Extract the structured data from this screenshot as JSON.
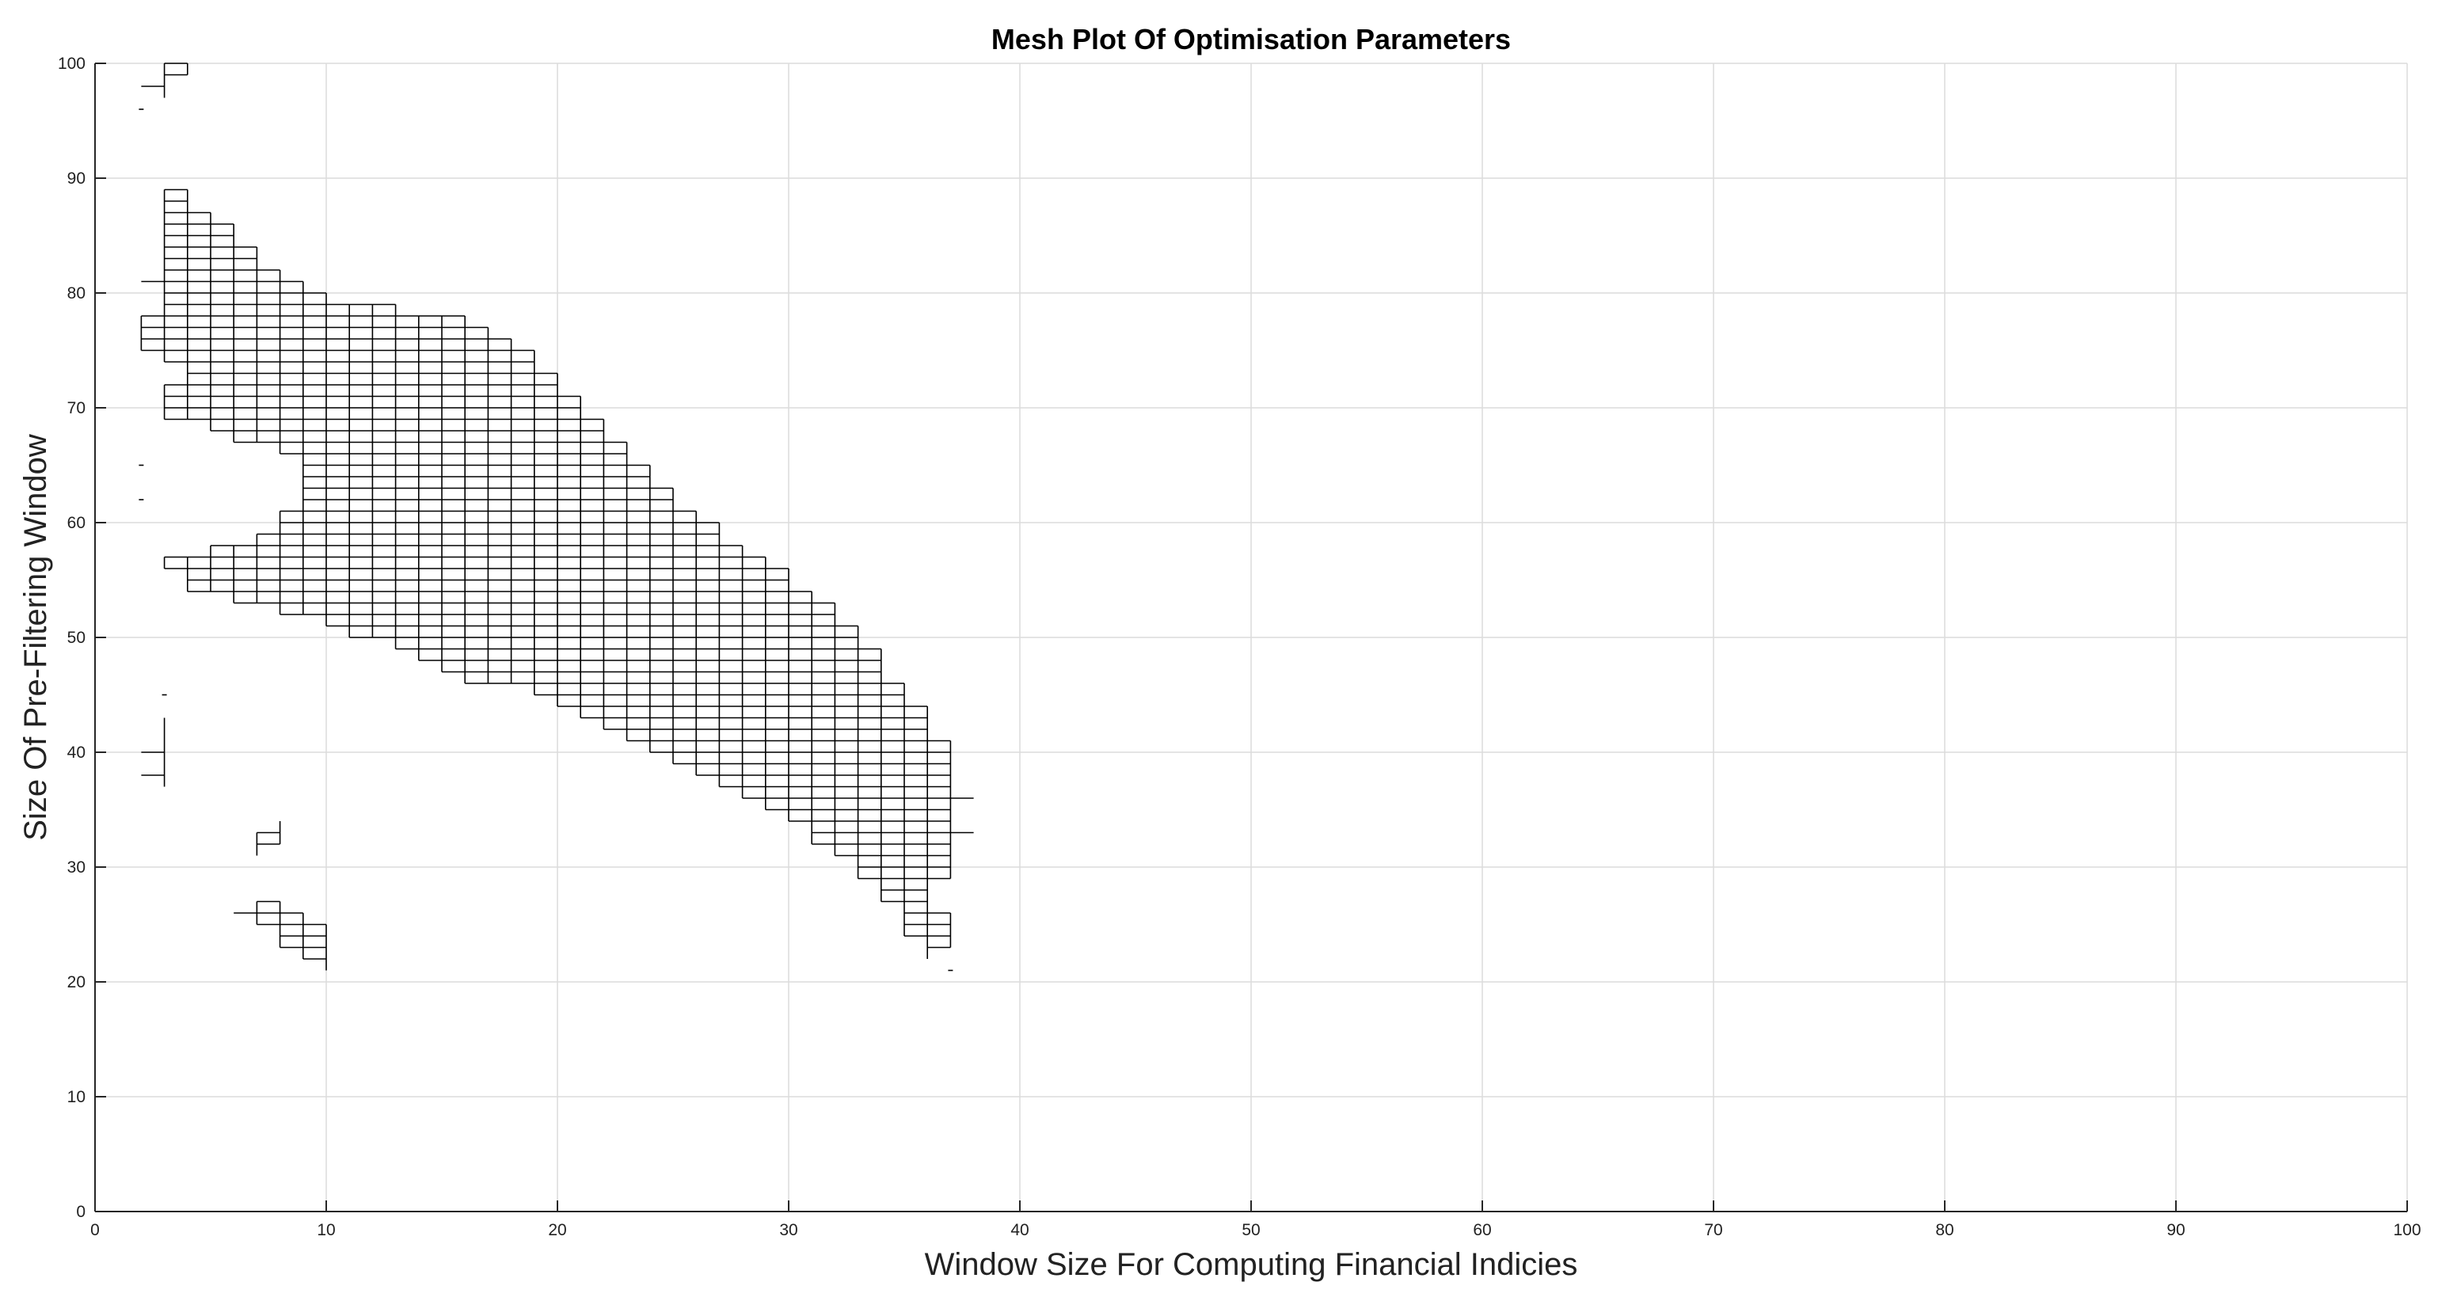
{
  "chart_data": {
    "type": "mesh",
    "title": "Mesh Plot Of Optimisation Parameters",
    "xlabel": "Window Size For Computing Financial Indicies",
    "ylabel": "Size Of Pre-Filtering Window",
    "xlim": [
      0,
      100
    ],
    "ylim": [
      0,
      100
    ],
    "x_ticks": [
      0,
      10,
      20,
      30,
      40,
      50,
      60,
      70,
      80,
      90,
      100
    ],
    "y_ticks": [
      0,
      10,
      20,
      30,
      40,
      50,
      60,
      70,
      80,
      90,
      100
    ],
    "x_tick_labels": [
      "0",
      "10",
      "20",
      "30",
      "40",
      "50",
      "60",
      "70",
      "80",
      "90",
      "100"
    ],
    "y_tick_labels": [
      "0",
      "10",
      "20",
      "30",
      "40",
      "50",
      "60",
      "70",
      "80",
      "90",
      "100"
    ],
    "grid": true,
    "mesh_color": "#000000",
    "defined_region_rows": [
      {
        "y": 21,
        "segments": [
          [
            10,
            10
          ],
          [
            37,
            37
          ]
        ]
      },
      {
        "y": 22,
        "segments": [
          [
            9,
            10
          ],
          [
            36,
            36
          ]
        ]
      },
      {
        "y": 23,
        "segments": [
          [
            8,
            10
          ],
          [
            36,
            37
          ]
        ]
      },
      {
        "y": 24,
        "segments": [
          [
            8,
            10
          ],
          [
            35,
            37
          ]
        ]
      },
      {
        "y": 25,
        "segments": [
          [
            7,
            10
          ],
          [
            35,
            37
          ]
        ]
      },
      {
        "y": 26,
        "segments": [
          [
            6,
            9
          ],
          [
            35,
            37
          ]
        ]
      },
      {
        "y": 27,
        "segments": [
          [
            7,
            8
          ],
          [
            34,
            36
          ]
        ]
      },
      {
        "y": 28,
        "segments": [
          [
            34,
            36
          ]
        ]
      },
      {
        "y": 29,
        "segments": [
          [
            33,
            37
          ]
        ]
      },
      {
        "y": 30,
        "segments": [
          [
            33,
            37
          ]
        ]
      },
      {
        "y": 31,
        "segments": [
          [
            7,
            7
          ],
          [
            32,
            37
          ]
        ]
      },
      {
        "y": 32,
        "segments": [
          [
            7,
            8
          ],
          [
            31,
            37
          ]
        ]
      },
      {
        "y": 33,
        "segments": [
          [
            7,
            8
          ],
          [
            31,
            38
          ]
        ]
      },
      {
        "y": 34,
        "segments": [
          [
            8,
            8
          ],
          [
            30,
            37
          ]
        ]
      },
      {
        "y": 35,
        "segments": [
          [
            29,
            37
          ]
        ]
      },
      {
        "y": 36,
        "segments": [
          [
            28,
            38
          ]
        ]
      },
      {
        "y": 37,
        "segments": [
          [
            3,
            3
          ],
          [
            27,
            37
          ]
        ]
      },
      {
        "y": 38,
        "segments": [
          [
            2,
            3
          ],
          [
            26,
            37
          ]
        ]
      },
      {
        "y": 39,
        "segments": [
          [
            3,
            3
          ],
          [
            25,
            37
          ]
        ]
      },
      {
        "y": 40,
        "segments": [
          [
            2,
            3
          ],
          [
            24,
            37
          ]
        ]
      },
      {
        "y": 41,
        "segments": [
          [
            3,
            3
          ],
          [
            23,
            37
          ]
        ]
      },
      {
        "y": 42,
        "segments": [
          [
            3,
            3
          ],
          [
            22,
            36
          ]
        ]
      },
      {
        "y": 43,
        "segments": [
          [
            3,
            3
          ],
          [
            21,
            36
          ]
        ]
      },
      {
        "y": 44,
        "segments": [
          [
            20,
            36
          ]
        ]
      },
      {
        "y": 45,
        "segments": [
          [
            3,
            3
          ],
          [
            19,
            35
          ]
        ]
      },
      {
        "y": 46,
        "segments": [
          [
            16,
            35
          ]
        ]
      },
      {
        "y": 47,
        "segments": [
          [
            15,
            34
          ]
        ]
      },
      {
        "y": 48,
        "segments": [
          [
            14,
            34
          ]
        ]
      },
      {
        "y": 49,
        "segments": [
          [
            13,
            34
          ]
        ]
      },
      {
        "y": 50,
        "segments": [
          [
            11,
            33
          ]
        ]
      },
      {
        "y": 51,
        "segments": [
          [
            10,
            33
          ]
        ]
      },
      {
        "y": 52,
        "segments": [
          [
            8,
            32
          ]
        ]
      },
      {
        "y": 53,
        "segments": [
          [
            6,
            32
          ]
        ]
      },
      {
        "y": 54,
        "segments": [
          [
            4,
            31
          ]
        ]
      },
      {
        "y": 55,
        "segments": [
          [
            4,
            30
          ]
        ]
      },
      {
        "y": 56,
        "segments": [
          [
            3,
            30
          ]
        ]
      },
      {
        "y": 57,
        "segments": [
          [
            3,
            29
          ]
        ]
      },
      {
        "y": 58,
        "segments": [
          [
            5,
            28
          ]
        ]
      },
      {
        "y": 59,
        "segments": [
          [
            7,
            27
          ]
        ]
      },
      {
        "y": 60,
        "segments": [
          [
            8,
            27
          ]
        ]
      },
      {
        "y": 61,
        "segments": [
          [
            8,
            26
          ]
        ]
      },
      {
        "y": 62,
        "segments": [
          [
            2,
            2
          ],
          [
            9,
            25
          ]
        ]
      },
      {
        "y": 63,
        "segments": [
          [
            9,
            25
          ]
        ]
      },
      {
        "y": 64,
        "segments": [
          [
            9,
            24
          ]
        ]
      },
      {
        "y": 65,
        "segments": [
          [
            2,
            2
          ],
          [
            9,
            24
          ]
        ]
      },
      {
        "y": 66,
        "segments": [
          [
            8,
            23
          ]
        ]
      },
      {
        "y": 67,
        "segments": [
          [
            6,
            23
          ]
        ]
      },
      {
        "y": 68,
        "segments": [
          [
            5,
            22
          ]
        ]
      },
      {
        "y": 69,
        "segments": [
          [
            3,
            22
          ]
        ]
      },
      {
        "y": 70,
        "segments": [
          [
            3,
            21
          ]
        ]
      },
      {
        "y": 71,
        "segments": [
          [
            3,
            21
          ]
        ]
      },
      {
        "y": 72,
        "segments": [
          [
            3,
            20
          ]
        ]
      },
      {
        "y": 73,
        "segments": [
          [
            4,
            20
          ]
        ]
      },
      {
        "y": 74,
        "segments": [
          [
            3,
            19
          ]
        ]
      },
      {
        "y": 75,
        "segments": [
          [
            2,
            19
          ]
        ]
      },
      {
        "y": 76,
        "segments": [
          [
            2,
            18
          ]
        ]
      },
      {
        "y": 77,
        "segments": [
          [
            2,
            17
          ]
        ]
      },
      {
        "y": 78,
        "segments": [
          [
            2,
            16
          ]
        ]
      },
      {
        "y": 79,
        "segments": [
          [
            3,
            13
          ]
        ]
      },
      {
        "y": 80,
        "segments": [
          [
            3,
            10
          ]
        ]
      },
      {
        "y": 81,
        "segments": [
          [
            2,
            9
          ]
        ]
      },
      {
        "y": 82,
        "segments": [
          [
            3,
            8
          ]
        ]
      },
      {
        "y": 83,
        "segments": [
          [
            3,
            7
          ]
        ]
      },
      {
        "y": 84,
        "segments": [
          [
            3,
            7
          ]
        ]
      },
      {
        "y": 85,
        "segments": [
          [
            3,
            6
          ]
        ]
      },
      {
        "y": 86,
        "segments": [
          [
            3,
            6
          ]
        ]
      },
      {
        "y": 87,
        "segments": [
          [
            3,
            5
          ]
        ]
      },
      {
        "y": 88,
        "segments": [
          [
            3,
            4
          ]
        ]
      },
      {
        "y": 89,
        "segments": [
          [
            3,
            4
          ]
        ]
      },
      {
        "y": 96,
        "segments": [
          [
            2,
            2
          ]
        ]
      },
      {
        "y": 97,
        "segments": [
          [
            3,
            3
          ]
        ]
      },
      {
        "y": 98,
        "segments": [
          [
            2,
            3
          ]
        ]
      },
      {
        "y": 99,
        "segments": [
          [
            3,
            4
          ]
        ]
      },
      {
        "y": 100,
        "segments": [
          [
            3,
            4
          ]
        ]
      }
    ]
  }
}
